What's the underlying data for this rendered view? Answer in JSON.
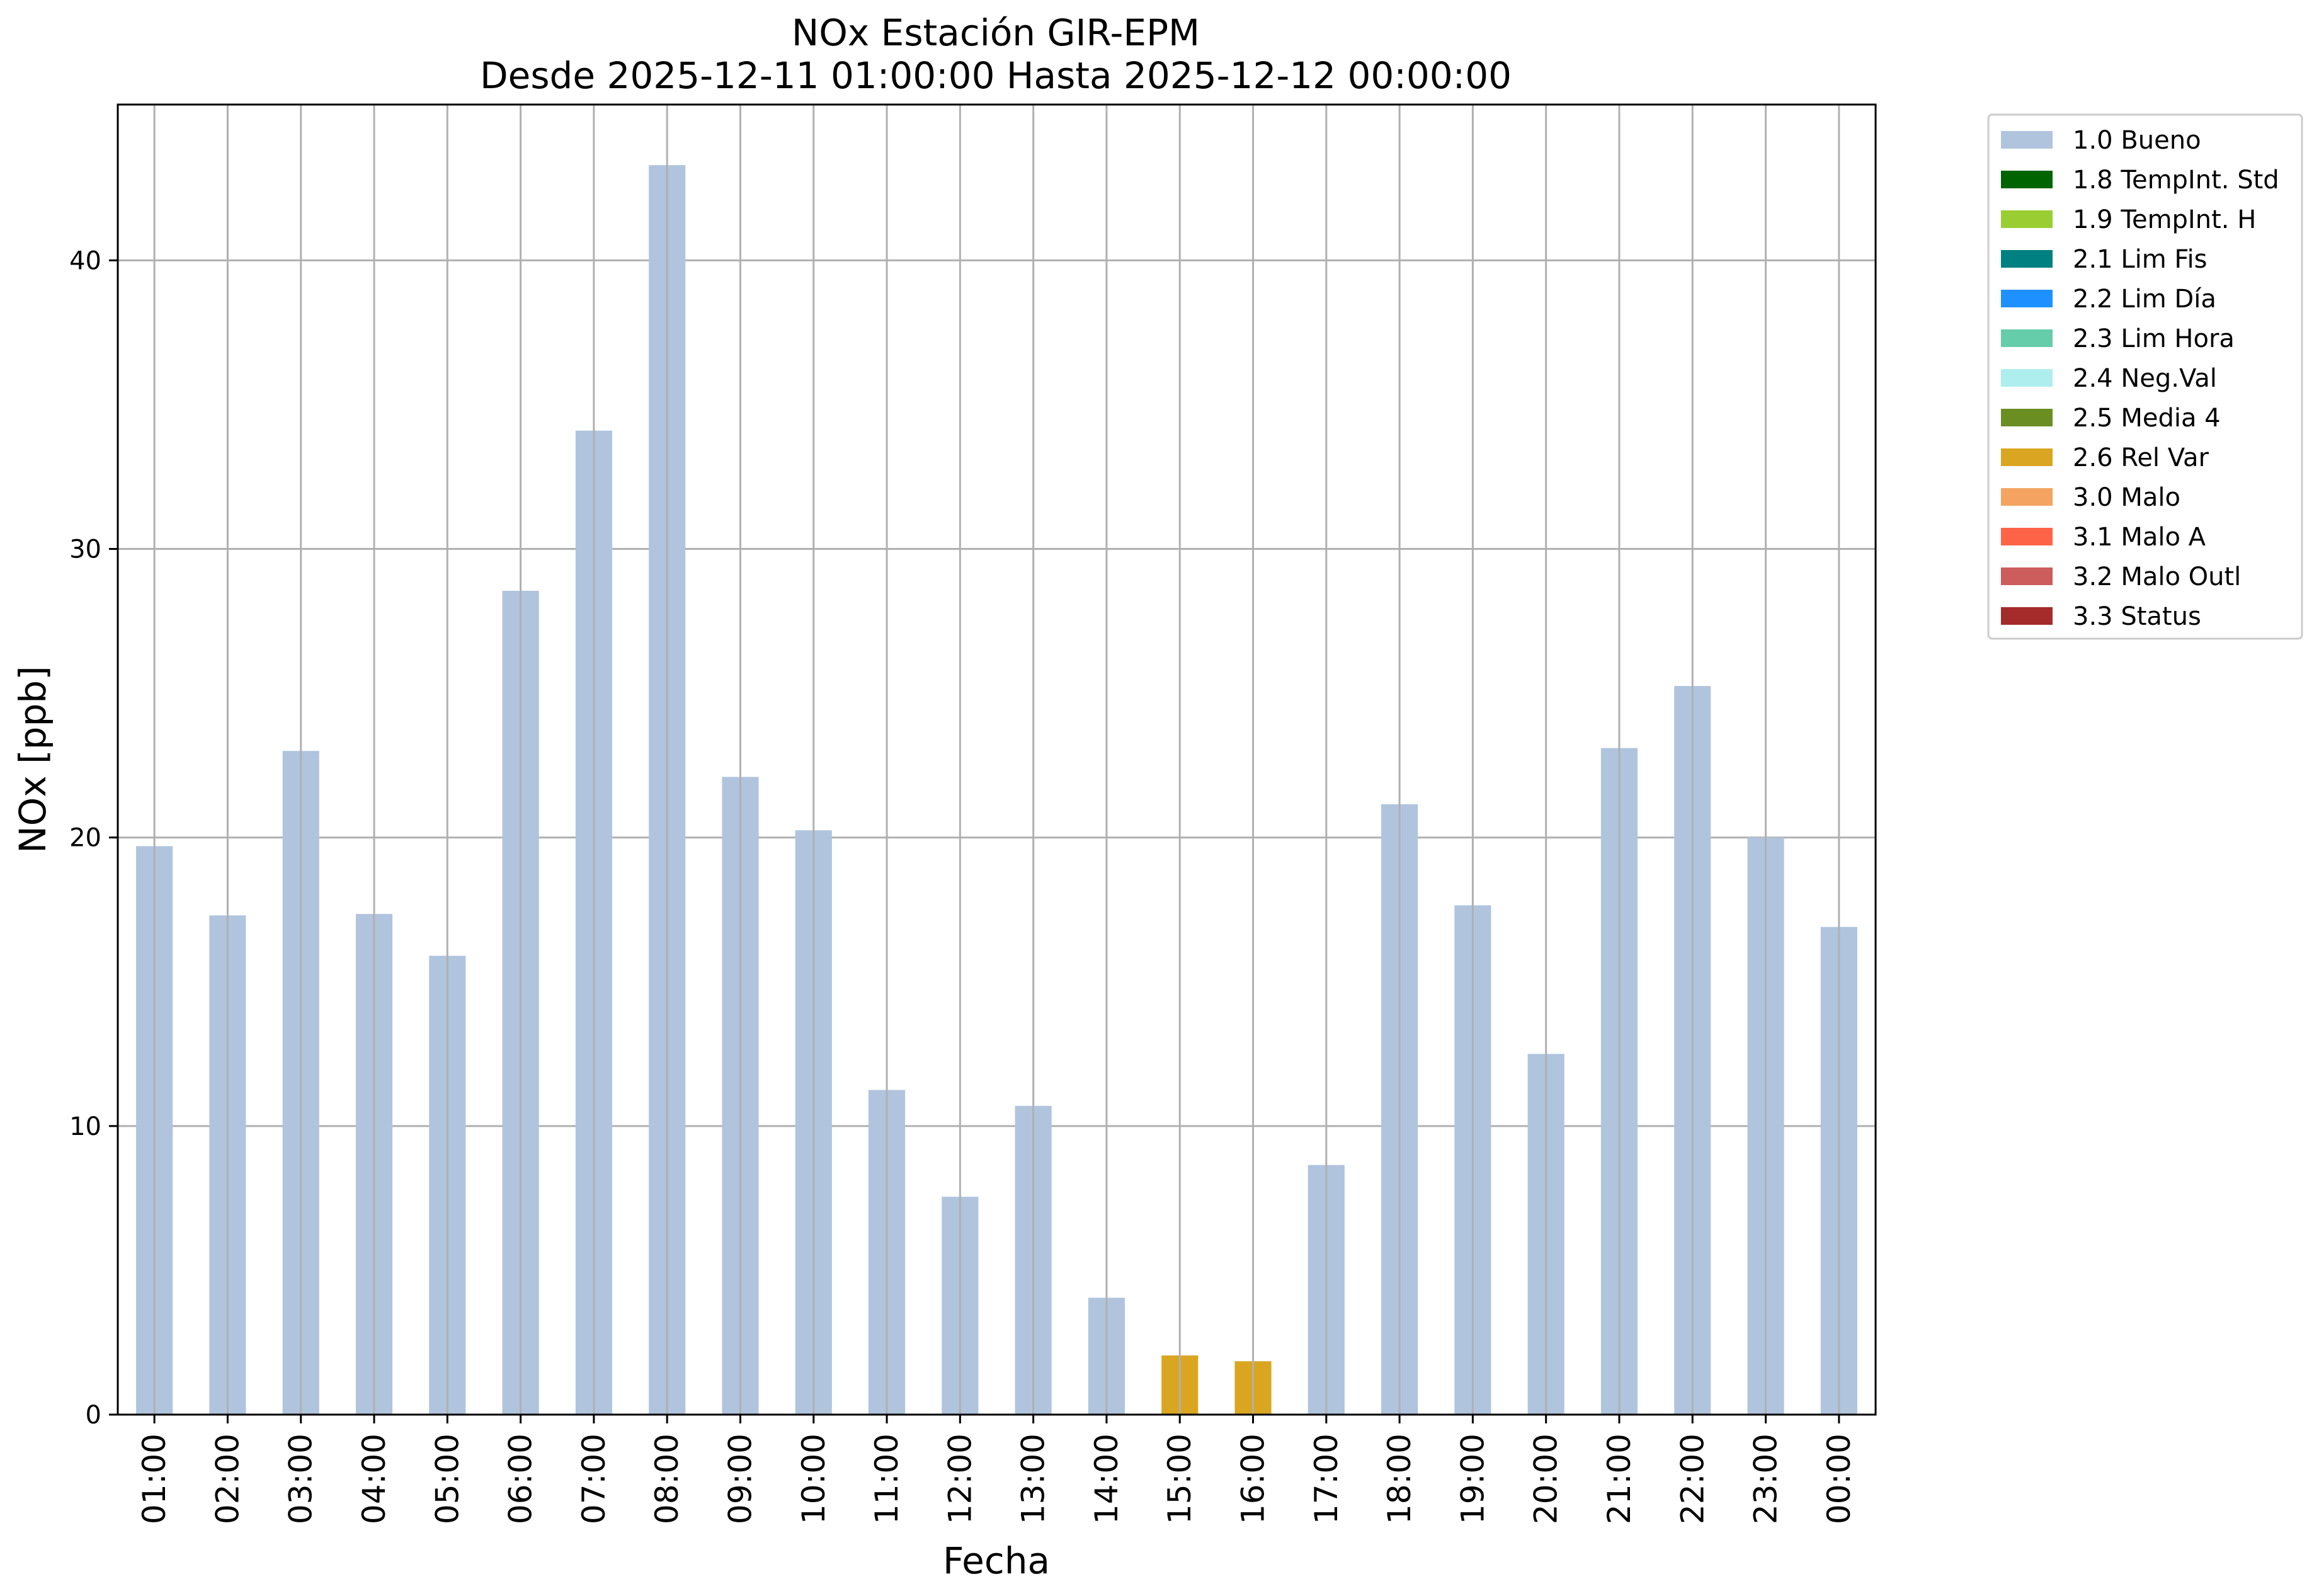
{
  "chart_data": {
    "type": "bar",
    "title": "NOx Estación GIR-EPM",
    "subtitle": "Desde 2025-12-11 01:00:00 Hasta 2025-12-12 00:00:00",
    "xlabel": "Fecha",
    "ylabel": "NOx [ppb]",
    "ylim": [
      0,
      45.4
    ],
    "yticks": [
      0,
      10,
      20,
      30,
      40
    ],
    "grid": true,
    "legend_position": "outside top-right",
    "categories": [
      "01:00",
      "02:00",
      "03:00",
      "04:00",
      "05:00",
      "06:00",
      "07:00",
      "08:00",
      "09:00",
      "10:00",
      "11:00",
      "12:00",
      "13:00",
      "14:00",
      "15:00",
      "16:00",
      "17:00",
      "18:00",
      "19:00",
      "20:00",
      "21:00",
      "22:00",
      "23:00",
      "00:00"
    ],
    "values": [
      19.7,
      17.3,
      23.0,
      17.35,
      15.9,
      28.55,
      34.1,
      43.3,
      22.1,
      20.25,
      11.25,
      7.55,
      10.7,
      4.05,
      2.05,
      1.85,
      8.65,
      21.15,
      17.65,
      12.5,
      23.1,
      25.25,
      20.0,
      16.9
    ],
    "flags": [
      "1.0 Bueno",
      "1.0 Bueno",
      "1.0 Bueno",
      "1.0 Bueno",
      "1.0 Bueno",
      "1.0 Bueno",
      "1.0 Bueno",
      "1.0 Bueno",
      "1.0 Bueno",
      "1.0 Bueno",
      "1.0 Bueno",
      "1.0 Bueno",
      "1.0 Bueno",
      "1.0 Bueno",
      "2.6 Rel Var",
      "2.6 Rel Var",
      "1.0 Bueno",
      "1.0 Bueno",
      "1.0 Bueno",
      "1.0 Bueno",
      "1.0 Bueno",
      "1.0 Bueno",
      "1.0 Bueno",
      "1.0 Bueno"
    ],
    "legend": [
      {
        "label": "1.0 Bueno",
        "color": "#b0c4de"
      },
      {
        "label": "1.8 TempInt. Std",
        "color": "#006400"
      },
      {
        "label": "1.9 TempInt. H",
        "color": "#9acd32"
      },
      {
        "label": "2.1 Lim Fis",
        "color": "#008080"
      },
      {
        "label": "2.2 Lim Día",
        "color": "#1e90ff"
      },
      {
        "label": "2.3 Lim Hora",
        "color": "#66cdaa"
      },
      {
        "label": "2.4 Neg.Val",
        "color": "#afeeee"
      },
      {
        "label": "2.5 Media 4",
        "color": "#6b8e23"
      },
      {
        "label": "2.6 Rel Var",
        "color": "#daa520"
      },
      {
        "label": "3.0 Malo",
        "color": "#f4a460"
      },
      {
        "label": "3.1 Malo A",
        "color": "#ff6347"
      },
      {
        "label": "3.2 Malo Outl",
        "color": "#cd5c5c"
      },
      {
        "label": "3.3 Status",
        "color": "#a52a2a"
      }
    ]
  }
}
